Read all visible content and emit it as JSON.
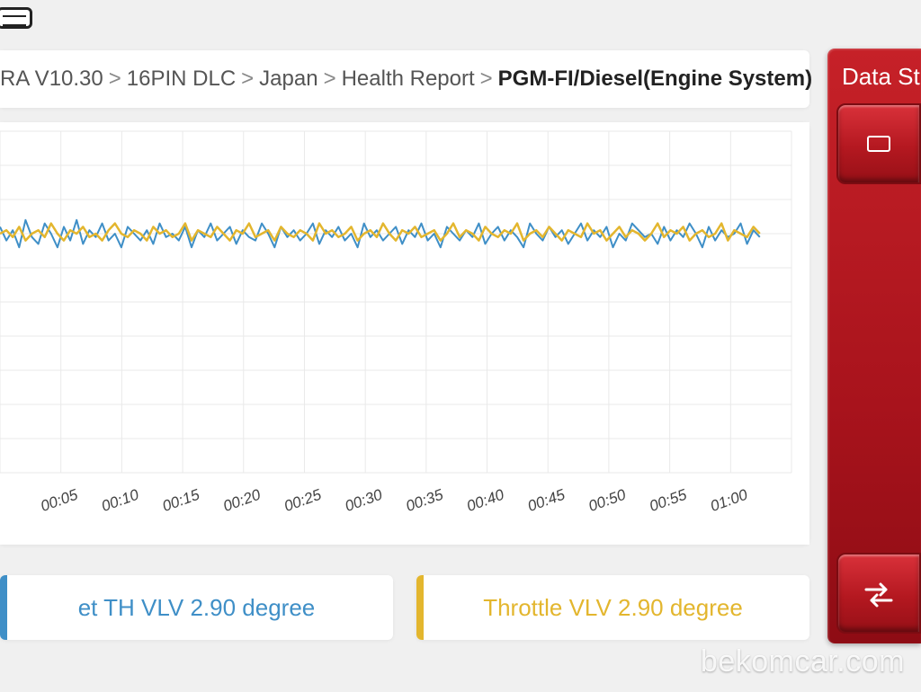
{
  "breadcrumb": {
    "segments": [
      "RA V10.30",
      "16PIN DLC",
      "Japan",
      "Health Report"
    ],
    "last": "PGM-FI/Diesel(Engine System)"
  },
  "side": {
    "title": "Data St",
    "buttons": [
      {
        "name": "side-button-top"
      },
      {
        "name": "side-button-bottom"
      }
    ]
  },
  "chart": {
    "type": "line",
    "background_color": "#ffffff",
    "grid_color": "#e9e9e9",
    "grid_rows": 10,
    "grid_cols": 13,
    "ylim": [
      0,
      100
    ],
    "y_baseline": 70,
    "y_noise_amplitude": 6,
    "x_labels": [
      "00:05",
      "00:10",
      "00:15",
      "00:20",
      "00:25",
      "00:30",
      "00:35",
      "00:40",
      "00:45",
      "00:50",
      "00:55",
      "01:00"
    ],
    "x_label_fontsize": 17,
    "x_label_color": "#444444",
    "series": [
      {
        "name": "et-th-vlv",
        "color": "#3f8fc7",
        "stroke_width": 2,
        "points_y": [
          72,
          68,
          71,
          66,
          74,
          69,
          67,
          73,
          70,
          66,
          72,
          68,
          74,
          67,
          71,
          69,
          73,
          68,
          70,
          66,
          72,
          70,
          68,
          71,
          67,
          73,
          69,
          70,
          68,
          72,
          66,
          71,
          69,
          73,
          68,
          70,
          72,
          67,
          71,
          69,
          68,
          73,
          70,
          66,
          72,
          69,
          71,
          68,
          70,
          73,
          67,
          71,
          69,
          72,
          68,
          70,
          66,
          73,
          69,
          71,
          68,
          70,
          72,
          67,
          71,
          69,
          73,
          68,
          70,
          66,
          72,
          70,
          68,
          71,
          69,
          73,
          67,
          70,
          72,
          68,
          71,
          69,
          66,
          73,
          70,
          68,
          72,
          69,
          71,
          67,
          70,
          73,
          68,
          71,
          69,
          72,
          66,
          70,
          68,
          73,
          71,
          69,
          70,
          67,
          72,
          68,
          71,
          69,
          73,
          70,
          66,
          72,
          68,
          71,
          69,
          70,
          73,
          67,
          71,
          69
        ]
      },
      {
        "name": "throttle-vlv",
        "color": "#e3b62e",
        "stroke_width": 2.5,
        "points_y": [
          70,
          71,
          69,
          72,
          68,
          70,
          71,
          69,
          73,
          70,
          68,
          71,
          70,
          72,
          69,
          70,
          68,
          71,
          73,
          70,
          69,
          71,
          70,
          68,
          72,
          70,
          71,
          69,
          70,
          73,
          68,
          71,
          70,
          69,
          72,
          70,
          68,
          71,
          70,
          73,
          69,
          70,
          71,
          68,
          72,
          70,
          69,
          71,
          70,
          68,
          73,
          70,
          71,
          69,
          70,
          72,
          68,
          70,
          71,
          69,
          73,
          70,
          68,
          71,
          70,
          72,
          69,
          70,
          71,
          68,
          70,
          73,
          69,
          71,
          70,
          68,
          72,
          70,
          69,
          71,
          70,
          73,
          68,
          70,
          71,
          69,
          72,
          70,
          68,
          71,
          70,
          69,
          73,
          70,
          71,
          68,
          70,
          72,
          69,
          71,
          70,
          68,
          70,
          73,
          69,
          71,
          70,
          72,
          68,
          70,
          71,
          69,
          70,
          73,
          68,
          71,
          70,
          69,
          72,
          70
        ]
      }
    ]
  },
  "legend": {
    "items": [
      {
        "label": "et TH VLV 2.90 degree",
        "bar_color": "#3f8fc7",
        "text_color": "#3f8fc7"
      },
      {
        "label": "Throttle VLV 2.90 degree",
        "bar_color": "#e3b62e",
        "text_color": "#e3b62e"
      }
    ]
  },
  "watermark": "bekomcar.com"
}
